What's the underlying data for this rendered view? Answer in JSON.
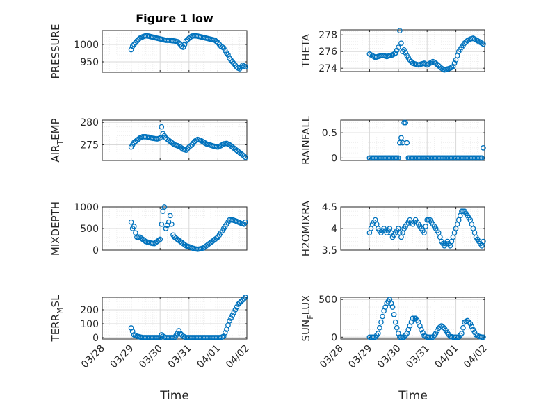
{
  "figure_title": "Figure 1 low",
  "xlabel": "Time",
  "xticks": [
    "03/28",
    "03/29",
    "03/30",
    "03/31",
    "04/01",
    "04/02"
  ],
  "colors": {
    "marker": "#0072BD",
    "axis": "#262626",
    "grid": "#d9d9d9",
    "grid_minor": "#ececec"
  },
  "chart_data": [
    {
      "type": "scatter",
      "name": "pressure",
      "ylabel": "PRESSURE",
      "ylabel_main": "PRESSURE",
      "ylabel_sub": "",
      "ylabel_rest": "",
      "ylim": [
        920,
        1040
      ],
      "yticks": [
        950,
        1000
      ],
      "x": [
        0.0,
        0.05,
        0.1,
        0.2,
        0.3,
        0.4,
        0.5,
        0.6,
        0.7,
        0.8,
        0.9,
        1.0,
        1.1,
        1.2,
        1.3,
        1.4,
        1.5,
        1.6,
        1.7,
        1.75,
        1.8,
        1.85,
        1.9,
        2.0,
        2.1,
        2.2,
        2.3,
        2.4,
        2.5,
        2.6,
        2.7,
        2.8,
        2.9,
        3.0,
        3.1,
        3.2,
        3.3,
        3.35,
        3.4,
        3.45,
        3.5,
        3.6,
        3.65,
        3.7,
        3.75,
        3.8,
        3.85,
        3.9,
        3.95
      ],
      "y": [
        985,
        995,
        1000,
        1010,
        1018,
        1022,
        1025,
        1024,
        1022,
        1020,
        1018,
        1016,
        1014,
        1012,
        1012,
        1011,
        1010,
        1008,
        1000,
        995,
        992,
        1000,
        1010,
        1018,
        1024,
        1025,
        1024,
        1022,
        1020,
        1018,
        1016,
        1014,
        1012,
        1005,
        995,
        990,
        975,
        970,
        960,
        955,
        950,
        940,
        935,
        932,
        930,
        935,
        940,
        938,
        936
      ]
    },
    {
      "type": "scatter",
      "name": "theta",
      "ylabel": "THETA",
      "ylabel_main": "THETA",
      "ylabel_sub": "",
      "ylabel_rest": "",
      "ylim": [
        273.6,
        278.6
      ],
      "yticks": [
        274,
        276,
        278
      ],
      "x": [
        0.0,
        0.1,
        0.2,
        0.3,
        0.4,
        0.5,
        0.6,
        0.7,
        0.8,
        0.9,
        1.0,
        1.05,
        1.1,
        1.15,
        1.2,
        1.3,
        1.4,
        1.5,
        1.6,
        1.7,
        1.8,
        1.9,
        2.0,
        2.1,
        2.2,
        2.3,
        2.4,
        2.5,
        2.6,
        2.7,
        2.8,
        2.9,
        3.0,
        3.1,
        3.2,
        3.3,
        3.4,
        3.5,
        3.6,
        3.7,
        3.8,
        3.9,
        3.95
      ],
      "y": [
        275.7,
        275.5,
        275.3,
        275.4,
        275.5,
        275.5,
        275.4,
        275.5,
        275.6,
        275.8,
        276.5,
        278.5,
        277.0,
        276.0,
        276.2,
        275.5,
        275.0,
        274.6,
        274.5,
        274.4,
        274.5,
        274.6,
        274.4,
        274.6,
        274.8,
        274.6,
        274.3,
        274.0,
        273.8,
        273.9,
        274.0,
        274.2,
        275.0,
        276.0,
        276.5,
        277.0,
        277.3,
        277.5,
        277.6,
        277.4,
        277.2,
        277.0,
        276.9
      ]
    },
    {
      "type": "scatter",
      "name": "air_temp",
      "ylabel": "AIR_TEMP",
      "ylabel_main": "AIR",
      "ylabel_sub": "T",
      "ylabel_rest": "EMP",
      "ylim": [
        271.5,
        280.5
      ],
      "yticks": [
        275,
        280
      ],
      "x": [
        0.0,
        0.1,
        0.2,
        0.3,
        0.4,
        0.5,
        0.6,
        0.7,
        0.8,
        0.9,
        1.0,
        1.05,
        1.1,
        1.2,
        1.3,
        1.4,
        1.5,
        1.6,
        1.7,
        1.8,
        1.9,
        2.0,
        2.1,
        2.2,
        2.3,
        2.4,
        2.5,
        2.6,
        2.7,
        2.8,
        2.9,
        3.0,
        3.1,
        3.2,
        3.3,
        3.4,
        3.5,
        3.6,
        3.7,
        3.8,
        3.9,
        3.95
      ],
      "y": [
        274.5,
        275.5,
        276.0,
        276.5,
        276.8,
        276.8,
        276.7,
        276.5,
        276.4,
        276.3,
        276.5,
        279.0,
        277.5,
        276.5,
        276.0,
        275.5,
        275.0,
        274.8,
        274.5,
        274.0,
        273.8,
        274.5,
        275.0,
        275.8,
        276.2,
        276.0,
        275.6,
        275.2,
        275.0,
        274.8,
        274.6,
        274.5,
        274.8,
        275.2,
        275.3,
        275.0,
        274.5,
        274.0,
        273.5,
        273.0,
        272.5,
        272.2
      ]
    },
    {
      "type": "scatter",
      "name": "rainfall",
      "ylabel": "RAINFALL",
      "ylabel_main": "RAINFALL",
      "ylabel_sub": "",
      "ylabel_rest": "",
      "ylim": [
        -0.05,
        0.75
      ],
      "yticks": [
        0,
        0.5
      ],
      "x": [
        0.0,
        0.1,
        0.2,
        0.3,
        0.4,
        0.5,
        0.6,
        0.7,
        0.8,
        0.9,
        1.0,
        1.05,
        1.1,
        1.15,
        1.2,
        1.25,
        1.3,
        1.35,
        1.4,
        1.5,
        1.6,
        1.7,
        1.8,
        1.9,
        2.0,
        2.1,
        2.2,
        2.3,
        2.4,
        2.5,
        2.6,
        2.7,
        2.8,
        2.9,
        3.0,
        3.1,
        3.2,
        3.3,
        3.4,
        3.5,
        3.6,
        3.7,
        3.8,
        3.9,
        3.95
      ],
      "y": [
        0,
        0,
        0,
        0,
        0,
        0,
        0,
        0,
        0,
        0,
        0,
        0.3,
        0.4,
        0.3,
        0.7,
        0.7,
        0.3,
        0,
        0,
        0,
        0,
        0,
        0,
        0,
        0,
        0,
        0,
        0,
        0,
        0,
        0,
        0,
        0,
        0,
        0,
        0,
        0,
        0,
        0,
        0,
        0,
        0,
        0,
        0,
        0.2
      ]
    },
    {
      "type": "scatter",
      "name": "mixdepth",
      "ylabel": "MIXDEPTH",
      "ylabel_main": "MIXDEPTH",
      "ylabel_sub": "",
      "ylabel_rest": "",
      "ylim": [
        0,
        1000
      ],
      "yticks": [
        0,
        500,
        1000
      ],
      "x": [
        0.0,
        0.05,
        0.1,
        0.15,
        0.2,
        0.3,
        0.4,
        0.5,
        0.6,
        0.7,
        0.8,
        0.9,
        1.0,
        1.05,
        1.1,
        1.15,
        1.2,
        1.3,
        1.35,
        1.4,
        1.45,
        1.5,
        1.6,
        1.7,
        1.8,
        1.9,
        2.0,
        2.1,
        2.2,
        2.3,
        2.4,
        2.5,
        2.6,
        2.7,
        2.8,
        2.9,
        3.0,
        3.1,
        3.2,
        3.3,
        3.4,
        3.5,
        3.6,
        3.7,
        3.8,
        3.9,
        3.95
      ],
      "y": [
        650,
        500,
        550,
        400,
        300,
        300,
        250,
        200,
        180,
        160,
        150,
        200,
        250,
        600,
        900,
        1000,
        500,
        650,
        800,
        600,
        350,
        300,
        250,
        200,
        150,
        100,
        80,
        50,
        30,
        20,
        30,
        50,
        100,
        150,
        200,
        250,
        300,
        400,
        500,
        600,
        700,
        700,
        680,
        650,
        620,
        600,
        650
      ]
    },
    {
      "type": "scatter",
      "name": "h2omixra",
      "ylabel": "H2OMIXRA",
      "ylabel_main": "H2OMIXRA",
      "ylabel_sub": "",
      "ylabel_rest": "",
      "ylim": [
        3.5,
        4.5
      ],
      "yticks": [
        3.5,
        4,
        4.5
      ],
      "x": [
        0.0,
        0.1,
        0.2,
        0.3,
        0.4,
        0.5,
        0.6,
        0.7,
        0.8,
        0.9,
        1.0,
        1.1,
        1.2,
        1.3,
        1.4,
        1.5,
        1.6,
        1.7,
        1.8,
        1.9,
        2.0,
        2.1,
        2.2,
        2.3,
        2.4,
        2.5,
        2.6,
        2.7,
        2.8,
        2.9,
        3.0,
        3.1,
        3.2,
        3.3,
        3.4,
        3.5,
        3.6,
        3.7,
        3.8,
        3.9,
        3.95
      ],
      "y": [
        3.9,
        4.1,
        4.2,
        4.0,
        3.9,
        4.0,
        3.9,
        4.0,
        3.8,
        3.9,
        4.0,
        3.8,
        4.0,
        4.1,
        4.2,
        4.1,
        4.2,
        4.1,
        4.0,
        3.9,
        4.2,
        4.2,
        4.1,
        4.0,
        3.9,
        3.7,
        3.6,
        3.7,
        3.6,
        3.8,
        4.0,
        4.2,
        4.4,
        4.4,
        4.3,
        4.2,
        4.0,
        3.8,
        3.7,
        3.6,
        3.7
      ]
    },
    {
      "type": "scatter",
      "name": "terr_msl",
      "ylabel": "TERR_MSL",
      "ylabel_main": "TERR",
      "ylabel_sub": "M",
      "ylabel_rest": "SL",
      "ylim": [
        -10,
        290
      ],
      "yticks": [
        0,
        100,
        200
      ],
      "x": [
        0.0,
        0.1,
        0.2,
        0.3,
        0.4,
        0.5,
        0.6,
        0.7,
        0.8,
        0.9,
        1.0,
        1.05,
        1.1,
        1.2,
        1.3,
        1.4,
        1.5,
        1.6,
        1.65,
        1.7,
        1.8,
        1.9,
        2.0,
        2.1,
        2.2,
        2.3,
        2.4,
        2.5,
        2.6,
        2.7,
        2.8,
        2.9,
        3.0,
        3.1,
        3.2,
        3.3,
        3.4,
        3.5,
        3.6,
        3.7,
        3.8,
        3.85,
        3.9,
        3.95
      ],
      "y": [
        70,
        20,
        10,
        5,
        0,
        0,
        0,
        0,
        0,
        0,
        0,
        20,
        10,
        0,
        0,
        0,
        0,
        30,
        50,
        30,
        10,
        0,
        0,
        0,
        0,
        0,
        0,
        0,
        0,
        0,
        0,
        0,
        0,
        0,
        10,
        60,
        120,
        160,
        200,
        240,
        260,
        270,
        280,
        290
      ]
    },
    {
      "type": "scatter",
      "name": "sun_flux",
      "ylabel": "SUN_FLUX",
      "ylabel_main": "SUN",
      "ylabel_sub": "F",
      "ylabel_rest": "LUX",
      "ylim": [
        -25,
        530
      ],
      "yticks": [
        0,
        500
      ],
      "x": [
        0.0,
        0.1,
        0.2,
        0.3,
        0.4,
        0.5,
        0.6,
        0.7,
        0.8,
        0.9,
        1.0,
        1.05,
        1.1,
        1.2,
        1.3,
        1.4,
        1.5,
        1.6,
        1.7,
        1.8,
        1.9,
        2.0,
        2.1,
        2.2,
        2.3,
        2.4,
        2.5,
        2.6,
        2.7,
        2.8,
        2.9,
        3.0,
        3.1,
        3.2,
        3.3,
        3.4,
        3.5,
        3.6,
        3.7,
        3.8,
        3.9,
        3.95
      ],
      "y": [
        0,
        0,
        0,
        50,
        200,
        350,
        450,
        500,
        400,
        200,
        50,
        0,
        0,
        0,
        50,
        150,
        250,
        250,
        200,
        100,
        20,
        0,
        0,
        0,
        50,
        120,
        150,
        120,
        60,
        10,
        0,
        0,
        0,
        50,
        200,
        220,
        180,
        100,
        30,
        10,
        0,
        0
      ]
    }
  ]
}
